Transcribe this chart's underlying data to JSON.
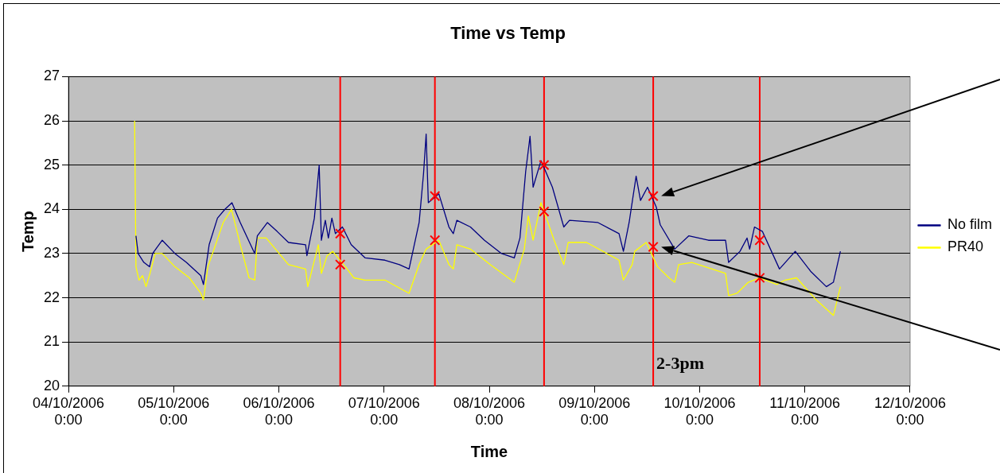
{
  "chart_data": {
    "type": "line",
    "title": "Time vs Temp",
    "xlabel": "Time",
    "ylabel": "Temp",
    "xlim": [
      "2006-10-04T00:00",
      "2006-10-12T00:00"
    ],
    "xticks": [
      {
        "value": "2006-10-04T00:00",
        "label": "04/10/2006 0:00"
      },
      {
        "value": "2006-10-05T00:00",
        "label": "05/10/2006 0:00"
      },
      {
        "value": "2006-10-06T00:00",
        "label": "06/10/2006 0:00"
      },
      {
        "value": "2006-10-07T00:00",
        "label": "07/10/2006 0:00"
      },
      {
        "value": "2006-10-08T00:00",
        "label": "08/10/2006 0:00"
      },
      {
        "value": "2006-10-09T00:00",
        "label": "09/10/2006 0:00"
      },
      {
        "value": "2006-10-10T00:00",
        "label": "10/10/2006 0:00"
      },
      {
        "value": "2006-10-11T00:00",
        "label": "11/10/2006 0:00"
      },
      {
        "value": "2006-10-12T00:00",
        "label": "12/10/2006 0:00"
      }
    ],
    "ylim": [
      20,
      27
    ],
    "yticks": [
      20,
      21,
      22,
      23,
      24,
      25,
      26,
      27
    ],
    "grid": "y",
    "legend": "right",
    "marker": "none",
    "line_style": "solid",
    "series": [
      {
        "name": "No film",
        "color": "#000080",
        "x": [
          "2006-10-04T15:24",
          "2006-10-04T15:54",
          "2006-10-04T17:12",
          "2006-10-04T18:30",
          "2006-10-04T19:12",
          "2006-10-04T21:24",
          "2006-10-05T00:18",
          "2006-10-05T02:54",
          "2006-10-05T06:12",
          "2006-10-05T06:48",
          "2006-10-05T08:06",
          "2006-10-05T10:00",
          "2006-10-05T11:42",
          "2006-10-05T13:18",
          "2006-10-05T15:12",
          "2006-10-05T18:30",
          "2006-10-05T19:06",
          "2006-10-05T21:24",
          "2006-10-05T23:36",
          "2006-10-06T02:12",
          "2006-10-06T06:06",
          "2006-10-06T06:24",
          "2006-10-06T08:06",
          "2006-10-06T09:12",
          "2006-10-06T09:42",
          "2006-10-06T10:36",
          "2006-10-06T11:18",
          "2006-10-06T12:06",
          "2006-10-06T12:54",
          "2006-10-06T14:30",
          "2006-10-06T16:30",
          "2006-10-06T19:42",
          "2006-10-07T00:12",
          "2006-10-07T03:30",
          "2006-10-07T05:42",
          "2006-10-07T08:00",
          "2006-10-07T09:00",
          "2006-10-07T09:36",
          "2006-10-07T10:06",
          "2006-10-07T12:30",
          "2006-10-07T14:48",
          "2006-10-07T15:48",
          "2006-10-07T16:36",
          "2006-10-07T19:42",
          "2006-10-07T22:54",
          "2006-10-08T02:48",
          "2006-10-08T05:42",
          "2006-10-08T07:00",
          "2006-10-08T08:18",
          "2006-10-08T09:18",
          "2006-10-08T10:00",
          "2006-10-08T11:48",
          "2006-10-08T14:24",
          "2006-10-08T17:00",
          "2006-10-08T18:18",
          "2006-10-09T00:48",
          "2006-10-09T05:36",
          "2006-10-09T06:36",
          "2006-10-09T07:54",
          "2006-10-09T09:30",
          "2006-10-09T10:30",
          "2006-10-09T12:06",
          "2006-10-09T14:06",
          "2006-10-09T15:00",
          "2006-10-09T18:18",
          "2006-10-09T21:30",
          "2006-10-10T02:00",
          "2006-10-10T05:54",
          "2006-10-10T06:36",
          "2006-10-10T09:12",
          "2006-10-10T10:48",
          "2006-10-10T11:24",
          "2006-10-10T12:30",
          "2006-10-10T14:18",
          "2006-10-10T18:12",
          "2006-10-10T21:48",
          "2006-10-11T01:18",
          "2006-10-11T04:54",
          "2006-10-11T06:30",
          "2006-10-11T08:06"
        ],
        "values": [
          23.4,
          23.0,
          22.8,
          22.7,
          23.0,
          23.3,
          23.0,
          22.8,
          22.5,
          22.3,
          23.2,
          23.8,
          24.0,
          24.15,
          23.7,
          23.0,
          23.4,
          23.7,
          23.5,
          23.25,
          23.2,
          22.95,
          23.8,
          25.0,
          23.3,
          23.75,
          23.35,
          23.8,
          23.45,
          23.6,
          23.2,
          22.9,
          22.85,
          22.75,
          22.65,
          23.7,
          24.8,
          25.7,
          24.15,
          24.35,
          23.6,
          23.45,
          23.75,
          23.6,
          23.3,
          23.0,
          22.9,
          23.35,
          24.85,
          25.65,
          24.5,
          25.1,
          24.5,
          23.6,
          23.75,
          23.7,
          23.45,
          23.05,
          23.7,
          24.75,
          24.2,
          24.5,
          24.05,
          23.65,
          23.1,
          23.4,
          23.3,
          23.3,
          22.8,
          23.05,
          23.35,
          23.1,
          23.6,
          23.5,
          22.65,
          23.05,
          22.6,
          22.25,
          22.35,
          23.05
        ]
      },
      {
        "name": "PR40",
        "color": "#ffff00",
        "x": [
          "2006-10-04T15:06",
          "2006-10-04T15:24",
          "2006-10-04T16:06",
          "2006-10-04T16:54",
          "2006-10-04T17:42",
          "2006-10-04T18:36",
          "2006-10-04T19:48",
          "2006-10-04T21:24",
          "2006-10-05T00:18",
          "2006-10-05T03:36",
          "2006-10-05T06:12",
          "2006-10-05T06:48",
          "2006-10-05T07:48",
          "2006-10-05T09:24",
          "2006-10-05T11:18",
          "2006-10-05T13:12",
          "2006-10-05T15:12",
          "2006-10-05T17:12",
          "2006-10-05T18:30",
          "2006-10-05T19:06",
          "2006-10-05T21:06",
          "2006-10-06T02:12",
          "2006-10-06T06:06",
          "2006-10-06T06:36",
          "2006-10-06T09:00",
          "2006-10-06T09:42",
          "2006-10-06T11:00",
          "2006-10-06T12:18",
          "2006-10-06T15:12",
          "2006-10-06T17:06",
          "2006-10-06T19:42",
          "2006-10-07T00:12",
          "2006-10-07T05:42",
          "2006-10-07T08:00",
          "2006-10-07T09:36",
          "2006-10-07T12:30",
          "2006-10-07T14:48",
          "2006-10-07T15:48",
          "2006-10-07T16:36",
          "2006-10-07T19:42",
          "2006-10-08T00:12",
          "2006-10-08T05:42",
          "2006-10-08T08:00",
          "2006-10-08T08:54",
          "2006-10-08T10:00",
          "2006-10-08T11:48",
          "2006-10-08T14:48",
          "2006-10-08T17:00",
          "2006-10-08T18:00",
          "2006-10-08T22:12",
          "2006-10-09T05:36",
          "2006-10-09T06:36",
          "2006-10-09T08:36",
          "2006-10-09T09:12",
          "2006-10-09T11:48",
          "2006-10-09T14:24",
          "2006-10-09T17:00",
          "2006-10-09T18:18",
          "2006-10-09T19:12",
          "2006-10-09T22:12",
          "2006-10-10T05:54",
          "2006-10-10T06:36",
          "2006-10-10T08:30",
          "2006-10-10T11:06",
          "2006-10-10T13:42",
          "2006-10-10T17:36",
          "2006-10-10T19:30",
          "2006-10-10T22:06",
          "2006-10-11T02:36",
          "2006-10-11T06:30",
          "2006-10-11T08:06"
        ],
        "values": [
          26.0,
          22.7,
          22.4,
          22.5,
          22.25,
          22.55,
          23.0,
          23.0,
          22.7,
          22.45,
          22.1,
          21.95,
          22.7,
          23.15,
          23.7,
          24.0,
          23.2,
          22.45,
          22.4,
          23.35,
          23.35,
          22.75,
          22.65,
          22.25,
          23.2,
          22.55,
          22.95,
          23.05,
          22.7,
          22.45,
          22.4,
          22.4,
          22.1,
          22.75,
          23.1,
          23.3,
          22.75,
          22.65,
          23.2,
          23.1,
          22.75,
          22.35,
          23.1,
          23.85,
          23.3,
          24.15,
          23.3,
          22.75,
          23.25,
          23.25,
          22.85,
          22.4,
          22.75,
          23.05,
          23.25,
          22.7,
          22.45,
          22.35,
          22.75,
          22.8,
          22.55,
          22.05,
          22.1,
          22.35,
          22.45,
          22.3,
          22.4,
          22.45,
          21.95,
          21.6,
          22.25
        ]
      },
      {
        "type": "scatter",
        "color": "#ff0000",
        "marker": "cross",
        "x": [
          "2006-10-06T14:00",
          "2006-10-06T14:00",
          "2006-10-07T11:36",
          "2006-10-07T11:36",
          "2006-10-08T12:30",
          "2006-10-08T12:30",
          "2006-10-09T13:24",
          "2006-10-09T13:24",
          "2006-10-10T13:42",
          "2006-10-10T13:42"
        ],
        "values": [
          23.45,
          22.75,
          24.3,
          23.3,
          25.0,
          23.95,
          24.3,
          23.15,
          23.3,
          22.45
        ]
      }
    ],
    "ref_lines": [
      {
        "axis": "x",
        "value": "2006-10-06T14:00",
        "color": "#ff0000"
      },
      {
        "axis": "x",
        "value": "2006-10-07T11:36",
        "color": "#ff0000"
      },
      {
        "axis": "x",
        "value": "2006-10-08T12:30",
        "color": "#ff0000"
      },
      {
        "axis": "x",
        "value": "2006-10-09T13:24",
        "color": "#ff0000"
      },
      {
        "axis": "x",
        "value": "2006-10-10T13:42",
        "color": "#ff0000"
      }
    ],
    "annotations": [
      {
        "text": "2-3pm",
        "x": "2006-10-09T13:24",
        "y": 20.5
      }
    ]
  }
}
